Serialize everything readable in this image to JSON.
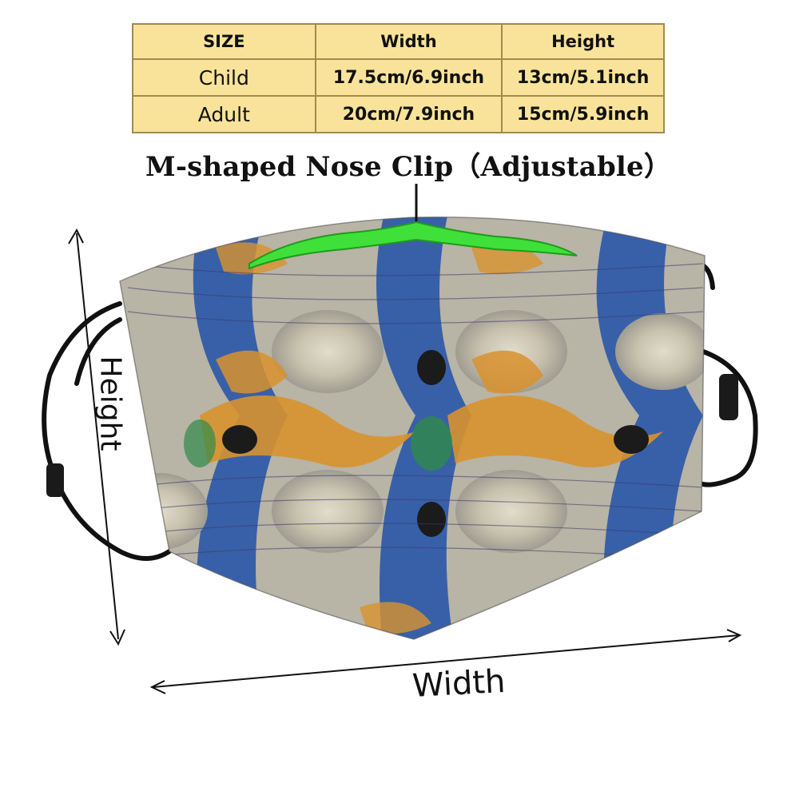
{
  "size_table": {
    "headers": [
      "SIZE",
      "Width",
      "Height"
    ],
    "rows": [
      {
        "size": "Child",
        "width": "17.5cm/6.9inch",
        "height": "13cm/5.1inch"
      },
      {
        "size": "Adult",
        "width": "20cm/7.9inch",
        "height": "15cm/5.9inch"
      }
    ]
  },
  "nose_clip_label": "M-shaped Nose Clip（Adjustable）",
  "dimension_labels": {
    "height": "Height",
    "width": "Width"
  },
  "colors": {
    "table_fill": "#f9e39b",
    "table_border": "#a08b4c",
    "nose_clip": "#3fe03a",
    "mask_blue": "#2a57a8",
    "mask_orange": "#d8922e",
    "mask_cream": "#cfc7b2",
    "strap": "#111111"
  }
}
